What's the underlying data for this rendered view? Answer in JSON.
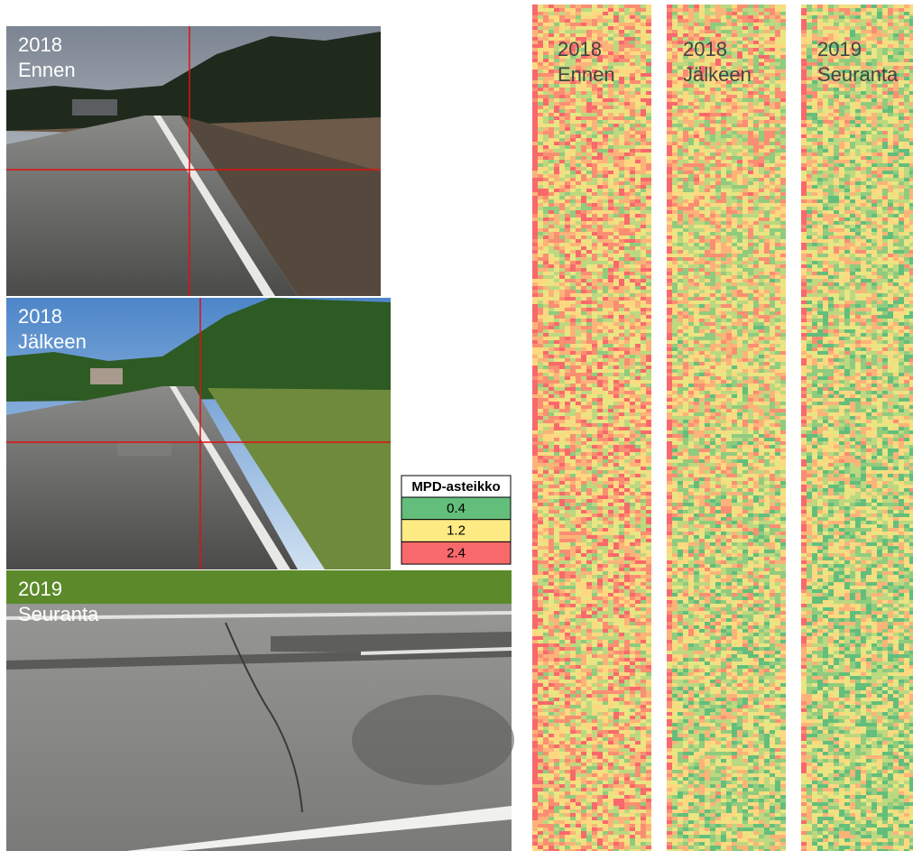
{
  "photos": [
    {
      "year": "2018",
      "label": "Ennen"
    },
    {
      "year": "2018",
      "label": "Jälkeen"
    },
    {
      "year": "2019",
      "label": "Seuranta"
    }
  ],
  "legend": {
    "title": "MPD-asteikko",
    "items": [
      {
        "value": 0.4,
        "color": "#63be7b"
      },
      {
        "value": 1.2,
        "color": "#ffeb84"
      },
      {
        "value": 2.4,
        "color": "#f8696b"
      }
    ]
  },
  "heatmaps": [
    {
      "year": "2018",
      "label": "Ennen"
    },
    {
      "year": "2018",
      "label": "Jälkeen"
    },
    {
      "year": "2019",
      "label": "Seuranta"
    }
  ]
}
